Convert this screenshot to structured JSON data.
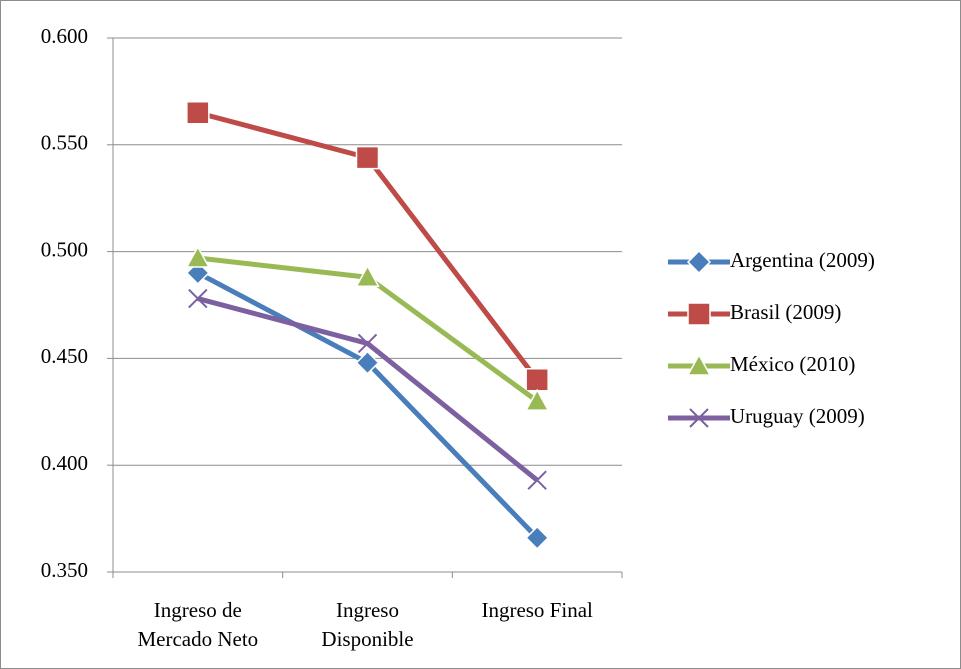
{
  "chart_data": {
    "type": "line",
    "categories": [
      "Ingreso de Mercado Neto",
      "Ingreso Disponible",
      "Ingreso Final"
    ],
    "series": [
      {
        "name": "Argentina (2009)",
        "color": "#4a7ebb",
        "marker": "diamond",
        "values": [
          0.49,
          0.448,
          0.366
        ]
      },
      {
        "name": "Brasil (2009)",
        "color": "#be4b48",
        "marker": "square",
        "values": [
          0.565,
          0.544,
          0.44
        ]
      },
      {
        "name": "México  (2010)",
        "color": "#98b954",
        "marker": "triangle",
        "values": [
          0.497,
          0.488,
          0.43
        ]
      },
      {
        "name": "Uruguay (2009)",
        "color": "#7d60a0",
        "marker": "x",
        "values": [
          0.478,
          0.457,
          0.393
        ]
      }
    ],
    "ylim": [
      0.35,
      0.6
    ],
    "yticks": [
      {
        "value": 0.35,
        "label": "0.350"
      },
      {
        "value": 0.4,
        "label": "0.400"
      },
      {
        "value": 0.45,
        "label": "0.450"
      },
      {
        "value": 0.5,
        "label": "0.500"
      },
      {
        "value": 0.55,
        "label": "0.550"
      },
      {
        "value": 0.6,
        "label": "0.600"
      }
    ],
    "grid": true,
    "legend": "right"
  }
}
